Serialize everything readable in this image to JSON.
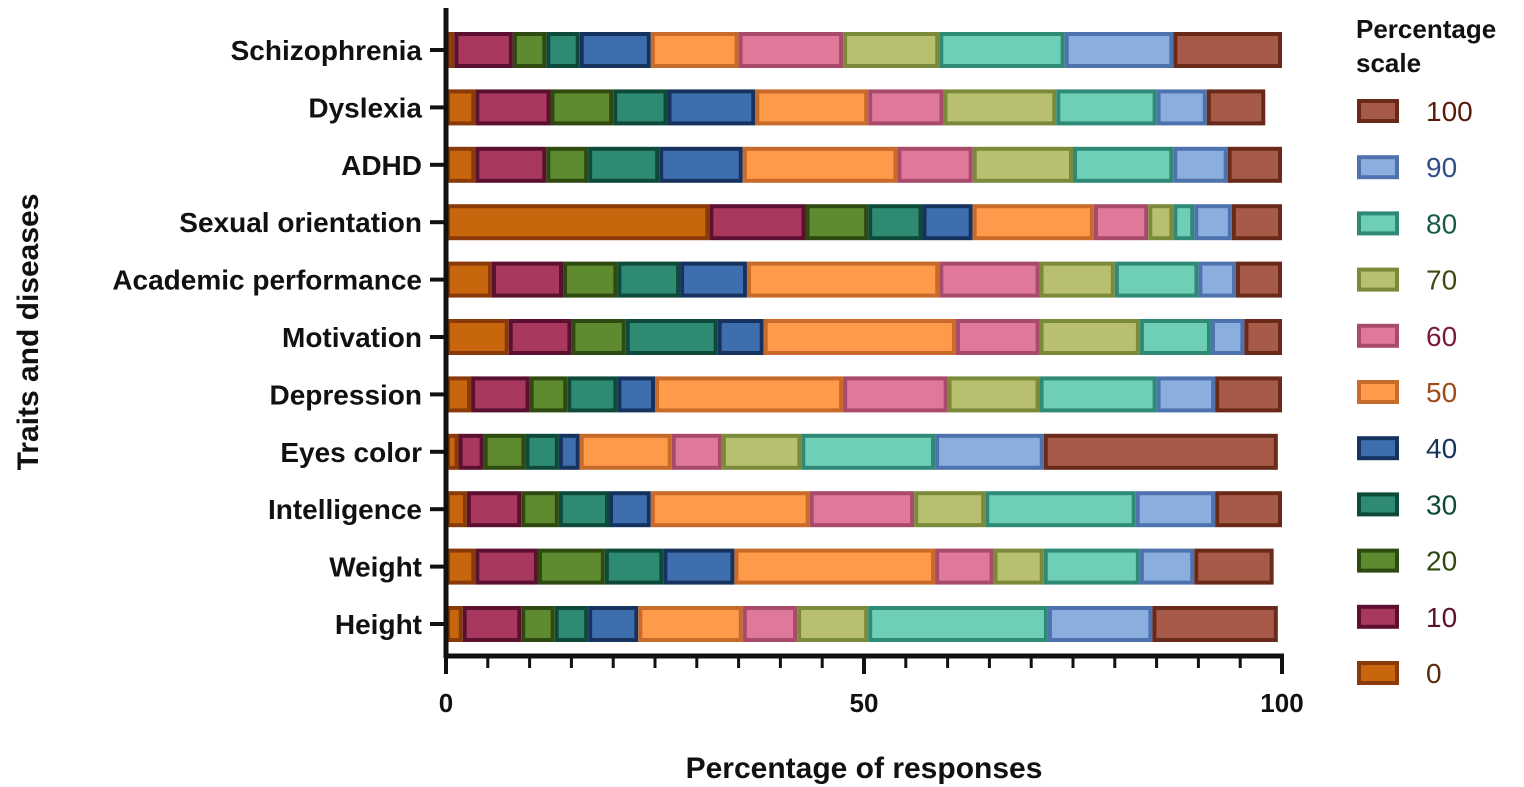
{
  "chart_data": {
    "type": "bar",
    "orientation": "horizontal",
    "stacked": true,
    "title": "",
    "xlabel": "Percentage of responses",
    "ylabel": "Traits and diseases",
    "xlim": [
      0,
      100
    ],
    "x_ticks": [
      "0",
      "50",
      "100"
    ],
    "categories": [
      "Schizophrenia",
      "Dyslexia",
      "ADHD",
      "Sexual orientation",
      "Academic performance",
      "Motivation",
      "Depression",
      "Eyes color",
      "Intelligence",
      "Weight",
      "Height"
    ],
    "legend_title_lines": [
      "Percentage",
      "scale"
    ],
    "legend_position": "right",
    "series": [
      {
        "name": "0",
        "fill": "#C8660E",
        "edge": "#8A3A08",
        "label_color": "#5A2A0A",
        "values": [
          1.0,
          3.5,
          3.5,
          31.5,
          5.5,
          7.5,
          3.0,
          1.5,
          2.5,
          3.5,
          2.0
        ]
      },
      {
        "name": "10",
        "fill": "#A8385E",
        "edge": "#5C1030",
        "label_color": "#5C1030",
        "values": [
          7.0,
          9.0,
          8.5,
          11.5,
          8.5,
          7.5,
          7.0,
          3.0,
          6.5,
          7.5,
          7.0
        ]
      },
      {
        "name": "20",
        "fill": "#5E8A30",
        "edge": "#2E4A10",
        "label_color": "#2E4A10",
        "values": [
          4.0,
          7.5,
          5.0,
          7.5,
          6.5,
          6.5,
          4.5,
          5.0,
          4.5,
          8.0,
          4.0
        ]
      },
      {
        "name": "30",
        "fill": "#2E8A72",
        "edge": "#0E4A3A",
        "label_color": "#0E4A3A",
        "values": [
          4.0,
          6.5,
          8.5,
          6.5,
          7.5,
          11.0,
          6.0,
          4.0,
          6.0,
          7.0,
          4.0
        ]
      },
      {
        "name": "40",
        "fill": "#3E6EAE",
        "edge": "#16325E",
        "label_color": "#16325E",
        "values": [
          8.5,
          10.5,
          10.0,
          6.0,
          8.0,
          5.5,
          4.5,
          2.5,
          5.0,
          8.5,
          6.0
        ]
      },
      {
        "name": "50",
        "fill": "#FF9A4A",
        "edge": "#C86A2A",
        "label_color": "#A04A1A",
        "values": [
          10.5,
          13.5,
          18.5,
          14.5,
          23.0,
          23.0,
          22.5,
          11.0,
          19.0,
          24.0,
          12.5
        ]
      },
      {
        "name": "60",
        "fill": "#E0789A",
        "edge": "#A84A6A",
        "label_color": "#7A1A3A",
        "values": [
          12.5,
          9.0,
          9.0,
          6.5,
          12.0,
          10.0,
          12.5,
          6.0,
          12.5,
          7.0,
          6.5
        ]
      },
      {
        "name": "70",
        "fill": "#B8C070",
        "edge": "#7A8A3A",
        "label_color": "#3E4A10",
        "values": [
          11.5,
          13.5,
          12.0,
          3.0,
          9.0,
          12.0,
          11.0,
          9.5,
          8.5,
          6.0,
          8.5
        ]
      },
      {
        "name": "80",
        "fill": "#6ECEB6",
        "edge": "#2E8A76",
        "label_color": "#1A5A4A",
        "values": [
          15.0,
          12.0,
          12.0,
          2.5,
          10.0,
          8.5,
          14.0,
          16.0,
          18.0,
          11.5,
          21.5
        ]
      },
      {
        "name": "90",
        "fill": "#8AAEDE",
        "edge": "#4E72AE",
        "label_color": "#2E4E8A",
        "values": [
          13.0,
          6.0,
          6.5,
          4.5,
          4.5,
          4.0,
          7.0,
          13.0,
          9.5,
          6.5,
          12.5
        ]
      },
      {
        "name": "100",
        "fill": "#A85A48",
        "edge": "#6A2A1A",
        "label_color": "#5A1A0A",
        "values": [
          13.0,
          7.0,
          6.5,
          6.0,
          5.5,
          4.5,
          8.0,
          28.0,
          8.0,
          9.5,
          15.0
        ]
      }
    ]
  }
}
